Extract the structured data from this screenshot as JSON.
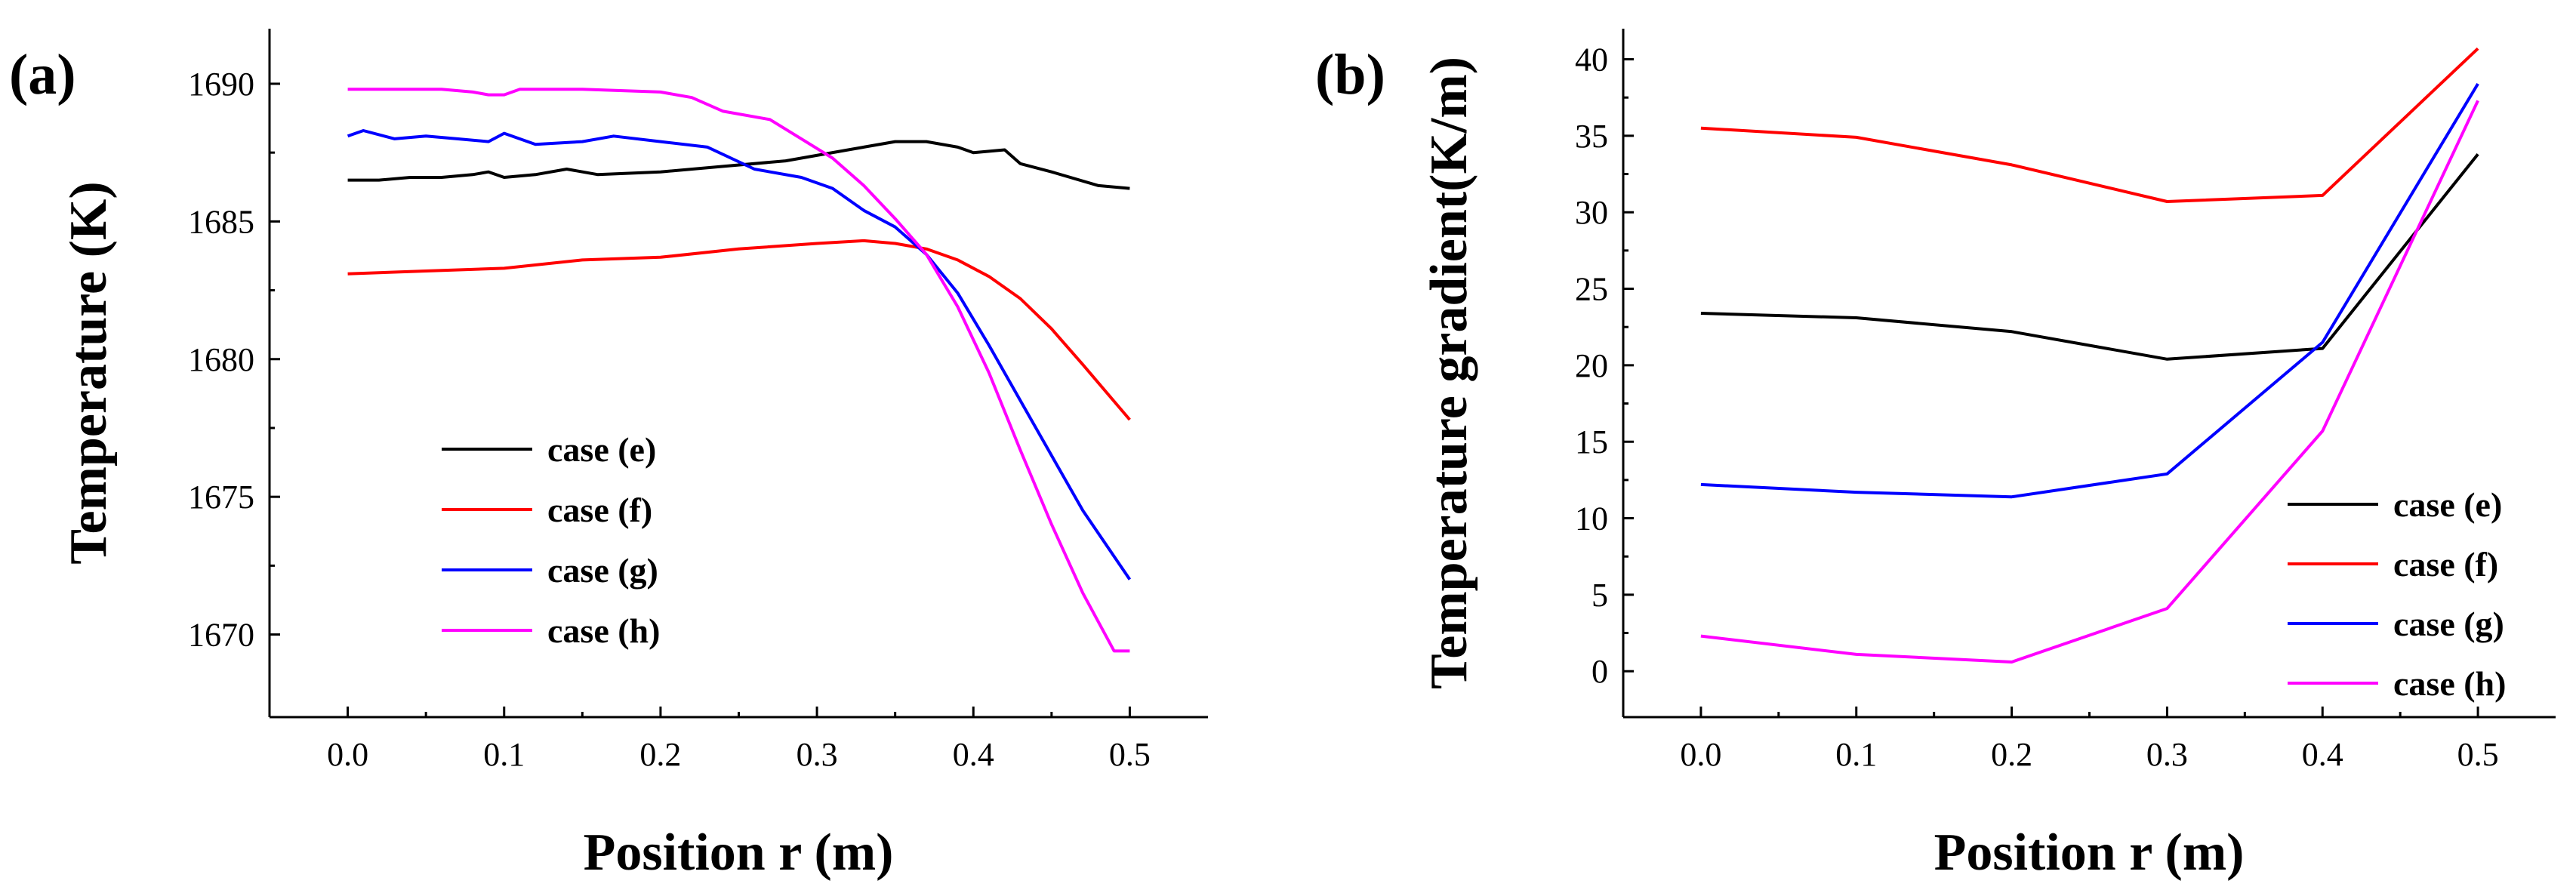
{
  "panel_labels": {
    "a": "(a)",
    "b": "(b)"
  },
  "chart_data": [
    {
      "type": "line",
      "panel": "(a)",
      "xlabel": "Position r (m)",
      "ylabel": "Temperature (K)",
      "xlim": [
        -0.05,
        0.55
      ],
      "ylim": [
        1667,
        1692
      ],
      "xticks": [
        0.0,
        0.1,
        0.2,
        0.3,
        0.4,
        0.5
      ],
      "xtick_labels": [
        "0.0",
        "0.1",
        "0.2",
        "0.3",
        "0.4",
        "0.5"
      ],
      "yticks": [
        1670,
        1675,
        1680,
        1685,
        1690
      ],
      "ytick_labels": [
        "1670",
        "1675",
        "1680",
        "1685",
        "1690"
      ],
      "legend_position": "lower-left",
      "series": [
        {
          "name": "case (e)",
          "color": "#000000",
          "x": [
            0.0,
            0.02,
            0.04,
            0.06,
            0.08,
            0.09,
            0.1,
            0.12,
            0.14,
            0.16,
            0.2,
            0.24,
            0.28,
            0.32,
            0.35,
            0.37,
            0.39,
            0.4,
            0.42,
            0.43,
            0.45,
            0.48,
            0.5
          ],
          "y": [
            1686.5,
            1686.5,
            1686.6,
            1686.6,
            1686.7,
            1686.8,
            1686.6,
            1686.7,
            1686.9,
            1686.7,
            1686.8,
            1687.0,
            1687.2,
            1687.6,
            1687.9,
            1687.9,
            1687.7,
            1687.5,
            1687.6,
            1687.1,
            1686.8,
            1686.3,
            1686.2
          ]
        },
        {
          "name": "case (f)",
          "color": "#ff0000",
          "x": [
            0.0,
            0.05,
            0.1,
            0.15,
            0.2,
            0.25,
            0.3,
            0.33,
            0.35,
            0.37,
            0.39,
            0.41,
            0.43,
            0.45,
            0.47,
            0.5
          ],
          "y": [
            1683.1,
            1683.2,
            1683.3,
            1683.6,
            1683.7,
            1684.0,
            1684.2,
            1684.3,
            1684.2,
            1684.0,
            1683.6,
            1683.0,
            1682.2,
            1681.1,
            1679.8,
            1677.8
          ]
        },
        {
          "name": "case (g)",
          "color": "#0000ff",
          "x": [
            0.0,
            0.01,
            0.03,
            0.05,
            0.07,
            0.09,
            0.1,
            0.12,
            0.15,
            0.17,
            0.2,
            0.23,
            0.26,
            0.29,
            0.31,
            0.33,
            0.35,
            0.37,
            0.39,
            0.41,
            0.43,
            0.45,
            0.47,
            0.5
          ],
          "y": [
            1688.1,
            1688.3,
            1688.0,
            1688.1,
            1688.0,
            1687.9,
            1688.2,
            1687.8,
            1687.9,
            1688.1,
            1687.9,
            1687.7,
            1686.9,
            1686.6,
            1686.2,
            1685.4,
            1684.8,
            1683.8,
            1682.4,
            1680.5,
            1678.5,
            1676.5,
            1674.5,
            1672.0
          ]
        },
        {
          "name": "case (h)",
          "color": "#ff00ff",
          "x": [
            0.0,
            0.03,
            0.06,
            0.08,
            0.09,
            0.1,
            0.11,
            0.15,
            0.2,
            0.22,
            0.24,
            0.27,
            0.29,
            0.31,
            0.33,
            0.35,
            0.37,
            0.39,
            0.41,
            0.43,
            0.45,
            0.47,
            0.49,
            0.5
          ],
          "y": [
            1689.8,
            1689.8,
            1689.8,
            1689.7,
            1689.6,
            1689.6,
            1689.8,
            1689.8,
            1689.7,
            1689.5,
            1689.0,
            1688.7,
            1688.0,
            1687.3,
            1686.3,
            1685.1,
            1683.8,
            1681.9,
            1679.5,
            1676.7,
            1674.0,
            1671.5,
            1669.4,
            1669.4
          ]
        }
      ]
    },
    {
      "type": "line",
      "panel": "(b)",
      "xlabel": "Position r (m)",
      "ylabel": "Temperature gradient(K/m)",
      "xlim": [
        -0.05,
        0.55
      ],
      "ylim": [
        -3,
        42
      ],
      "xticks": [
        0.0,
        0.1,
        0.2,
        0.3,
        0.4,
        0.5
      ],
      "xtick_labels": [
        "0.0",
        "0.1",
        "0.2",
        "0.3",
        "0.4",
        "0.5"
      ],
      "yticks": [
        0,
        5,
        10,
        15,
        20,
        25,
        30,
        35,
        40
      ],
      "ytick_labels": [
        "0",
        "5",
        "10",
        "15",
        "20",
        "25",
        "30",
        "35",
        "40"
      ],
      "legend_position": "lower-right",
      "series": [
        {
          "name": "case (e)",
          "color": "#000000",
          "x": [
            0.0,
            0.1,
            0.2,
            0.3,
            0.4,
            0.5
          ],
          "y": [
            23.4,
            23.1,
            22.2,
            20.4,
            21.1,
            33.8
          ]
        },
        {
          "name": "case (f)",
          "color": "#ff0000",
          "x": [
            0.0,
            0.1,
            0.2,
            0.3,
            0.4,
            0.5
          ],
          "y": [
            35.5,
            34.9,
            33.1,
            30.7,
            31.1,
            40.7
          ]
        },
        {
          "name": "case (g)",
          "color": "#0000ff",
          "x": [
            0.0,
            0.1,
            0.2,
            0.3,
            0.4,
            0.5
          ],
          "y": [
            12.2,
            11.7,
            11.4,
            12.9,
            21.5,
            38.4
          ]
        },
        {
          "name": "case (h)",
          "color": "#ff00ff",
          "x": [
            0.0,
            0.1,
            0.2,
            0.3,
            0.4,
            0.5
          ],
          "y": [
            2.3,
            1.1,
            0.6,
            4.1,
            15.7,
            37.3
          ]
        }
      ]
    }
  ]
}
